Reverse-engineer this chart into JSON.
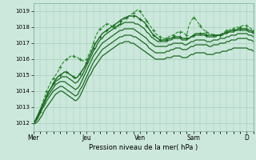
{
  "title": "",
  "xlabel": "Pression niveau de la mer( hPa )",
  "ylabel": "",
  "bg_color": "#cce8dc",
  "grid_color": "#a0c8b8",
  "line_color_solid": "#1a6b20",
  "line_color_dashed": "#2a8a30",
  "ylim": [
    1011.5,
    1019.5
  ],
  "yticks": [
    1012,
    1013,
    1014,
    1015,
    1016,
    1017,
    1018,
    1019
  ],
  "day_labels": [
    "Mer",
    "Jeu",
    "Ven",
    "Sam",
    "D"
  ],
  "day_positions": [
    0,
    24,
    48,
    72,
    96
  ],
  "total_hours": 100,
  "series": [
    [
      1012.0,
      1012.2,
      1012.5,
      1012.8,
      1013.2,
      1013.6,
      1014.0,
      1014.3,
      1014.6,
      1014.8,
      1015.0,
      1015.2,
      1015.5,
      1015.7,
      1015.9,
      1016.0,
      1016.1,
      1016.2,
      1016.2,
      1016.1,
      1016.1,
      1016.0,
      1015.9,
      1015.9,
      1016.0,
      1016.3,
      1016.6,
      1017.0,
      1017.4,
      1017.7,
      1017.9,
      1018.0,
      1018.1,
      1018.2,
      1018.2,
      1018.1,
      1018.0,
      1017.9,
      1018.0,
      1018.2,
      1018.4,
      1018.5,
      1018.6,
      1018.7,
      1018.8,
      1018.9,
      1019.0,
      1019.1,
      1019.0,
      1018.8,
      1018.6,
      1018.4,
      1018.2,
      1018.0,
      1017.8,
      1017.6,
      1017.5,
      1017.4,
      1017.3,
      1017.3,
      1017.3,
      1017.4,
      1017.5,
      1017.5,
      1017.6,
      1017.7,
      1017.7,
      1017.7,
      1017.6,
      1017.5,
      1018.1,
      1018.4,
      1018.6,
      1018.5,
      1018.3,
      1018.1,
      1017.9,
      1017.8,
      1017.7,
      1017.6,
      1017.6,
      1017.5,
      1017.5,
      1017.5,
      1017.5,
      1017.6,
      1017.7,
      1017.8,
      1017.8,
      1017.9,
      1017.9,
      1018.0,
      1018.0,
      1018.0,
      1018.1,
      1018.1,
      1018.1,
      1018.0,
      1017.9,
      1017.8
    ],
    [
      1012.0,
      1012.2,
      1012.4,
      1012.7,
      1013.0,
      1013.3,
      1013.7,
      1014.0,
      1014.2,
      1014.5,
      1014.7,
      1014.9,
      1015.0,
      1015.1,
      1015.2,
      1015.2,
      1015.1,
      1015.0,
      1014.9,
      1014.8,
      1014.9,
      1015.1,
      1015.3,
      1015.5,
      1015.8,
      1016.1,
      1016.4,
      1016.7,
      1017.0,
      1017.2,
      1017.4,
      1017.6,
      1017.7,
      1017.8,
      1017.9,
      1018.0,
      1018.1,
      1018.2,
      1018.3,
      1018.4,
      1018.5,
      1018.6,
      1018.6,
      1018.7,
      1018.7,
      1018.7,
      1018.7,
      1018.6,
      1018.5,
      1018.4,
      1018.3,
      1018.1,
      1017.9,
      1017.7,
      1017.5,
      1017.4,
      1017.3,
      1017.2,
      1017.2,
      1017.2,
      1017.2,
      1017.3,
      1017.3,
      1017.4,
      1017.4,
      1017.4,
      1017.4,
      1017.3,
      1017.3,
      1017.3,
      1017.3,
      1017.4,
      1017.5,
      1017.6,
      1017.6,
      1017.6,
      1017.6,
      1017.6,
      1017.5,
      1017.5,
      1017.5,
      1017.5,
      1017.5,
      1017.5,
      1017.5,
      1017.6,
      1017.6,
      1017.7,
      1017.7,
      1017.8,
      1017.8,
      1017.8,
      1017.9,
      1017.9,
      1017.9,
      1017.9,
      1017.9,
      1017.8,
      1017.8,
      1017.7
    ],
    [
      1012.0,
      1012.2,
      1012.5,
      1012.8,
      1013.1,
      1013.4,
      1013.7,
      1014.0,
      1014.2,
      1014.4,
      1014.6,
      1014.7,
      1014.8,
      1014.9,
      1014.9,
      1014.9,
      1014.8,
      1014.7,
      1014.6,
      1014.5,
      1014.6,
      1014.8,
      1015.0,
      1015.3,
      1015.6,
      1015.9,
      1016.2,
      1016.5,
      1016.7,
      1017.0,
      1017.2,
      1017.3,
      1017.5,
      1017.6,
      1017.7,
      1017.8,
      1017.9,
      1018.0,
      1018.1,
      1018.2,
      1018.2,
      1018.3,
      1018.3,
      1018.3,
      1018.3,
      1018.3,
      1018.2,
      1018.2,
      1018.1,
      1018.0,
      1017.9,
      1017.7,
      1017.6,
      1017.4,
      1017.3,
      1017.2,
      1017.1,
      1017.1,
      1017.1,
      1017.1,
      1017.1,
      1017.2,
      1017.2,
      1017.3,
      1017.3,
      1017.3,
      1017.3,
      1017.2,
      1017.2,
      1017.2,
      1017.3,
      1017.4,
      1017.4,
      1017.5,
      1017.5,
      1017.5,
      1017.5,
      1017.5,
      1017.4,
      1017.4,
      1017.4,
      1017.4,
      1017.4,
      1017.5,
      1017.5,
      1017.5,
      1017.6,
      1017.6,
      1017.7,
      1017.7,
      1017.7,
      1017.8,
      1017.8,
      1017.8,
      1017.8,
      1017.8,
      1017.8,
      1017.7,
      1017.7,
      1017.6
    ],
    [
      1012.0,
      1012.2,
      1012.4,
      1012.7,
      1013.0,
      1013.3,
      1013.6,
      1013.8,
      1014.0,
      1014.2,
      1014.4,
      1014.5,
      1014.6,
      1014.6,
      1014.6,
      1014.5,
      1014.4,
      1014.3,
      1014.2,
      1014.1,
      1014.2,
      1014.4,
      1014.7,
      1015.0,
      1015.3,
      1015.6,
      1015.9,
      1016.2,
      1016.4,
      1016.6,
      1016.8,
      1017.0,
      1017.1,
      1017.2,
      1017.3,
      1017.4,
      1017.5,
      1017.6,
      1017.7,
      1017.8,
      1017.8,
      1017.9,
      1017.9,
      1017.9,
      1017.9,
      1017.9,
      1017.8,
      1017.7,
      1017.6,
      1017.5,
      1017.4,
      1017.3,
      1017.1,
      1017.0,
      1016.9,
      1016.8,
      1016.8,
      1016.8,
      1016.8,
      1016.8,
      1016.8,
      1016.9,
      1016.9,
      1017.0,
      1017.0,
      1017.0,
      1017.0,
      1017.0,
      1016.9,
      1016.9,
      1017.0,
      1017.1,
      1017.1,
      1017.2,
      1017.2,
      1017.2,
      1017.2,
      1017.2,
      1017.1,
      1017.1,
      1017.1,
      1017.2,
      1017.2,
      1017.2,
      1017.3,
      1017.3,
      1017.3,
      1017.4,
      1017.4,
      1017.5,
      1017.5,
      1017.5,
      1017.6,
      1017.6,
      1017.6,
      1017.6,
      1017.6,
      1017.5,
      1017.5,
      1017.4
    ],
    [
      1012.0,
      1012.1,
      1012.3,
      1012.6,
      1012.9,
      1013.1,
      1013.4,
      1013.6,
      1013.8,
      1014.0,
      1014.1,
      1014.2,
      1014.3,
      1014.3,
      1014.2,
      1014.1,
      1014.0,
      1013.9,
      1013.8,
      1013.7,
      1013.8,
      1014.1,
      1014.3,
      1014.6,
      1014.9,
      1015.2,
      1015.5,
      1015.8,
      1016.0,
      1016.2,
      1016.4,
      1016.6,
      1016.7,
      1016.8,
      1016.9,
      1017.0,
      1017.1,
      1017.2,
      1017.3,
      1017.4,
      1017.4,
      1017.5,
      1017.5,
      1017.5,
      1017.5,
      1017.4,
      1017.4,
      1017.3,
      1017.2,
      1017.1,
      1017.0,
      1016.9,
      1016.7,
      1016.6,
      1016.5,
      1016.4,
      1016.4,
      1016.4,
      1016.4,
      1016.4,
      1016.5,
      1016.5,
      1016.6,
      1016.6,
      1016.7,
      1016.7,
      1016.7,
      1016.6,
      1016.6,
      1016.6,
      1016.7,
      1016.8,
      1016.8,
      1016.9,
      1016.9,
      1016.9,
      1016.9,
      1016.9,
      1016.9,
      1016.8,
      1016.8,
      1016.9,
      1016.9,
      1016.9,
      1017.0,
      1017.0,
      1017.0,
      1017.1,
      1017.1,
      1017.2,
      1017.2,
      1017.2,
      1017.3,
      1017.3,
      1017.3,
      1017.3,
      1017.3,
      1017.2,
      1017.2,
      1017.1
    ],
    [
      1012.0,
      1012.0,
      1012.1,
      1012.3,
      1012.5,
      1012.8,
      1013.0,
      1013.2,
      1013.4,
      1013.6,
      1013.8,
      1013.9,
      1014.0,
      1014.0,
      1013.9,
      1013.8,
      1013.7,
      1013.6,
      1013.5,
      1013.4,
      1013.5,
      1013.7,
      1014.0,
      1014.3,
      1014.6,
      1014.9,
      1015.1,
      1015.4,
      1015.6,
      1015.8,
      1016.0,
      1016.2,
      1016.3,
      1016.4,
      1016.5,
      1016.6,
      1016.7,
      1016.8,
      1016.9,
      1017.0,
      1017.0,
      1017.1,
      1017.1,
      1017.1,
      1017.0,
      1017.0,
      1016.9,
      1016.8,
      1016.7,
      1016.6,
      1016.5,
      1016.4,
      1016.3,
      1016.2,
      1016.1,
      1016.0,
      1016.0,
      1016.0,
      1016.0,
      1016.0,
      1016.1,
      1016.1,
      1016.1,
      1016.2,
      1016.2,
      1016.2,
      1016.2,
      1016.1,
      1016.1,
      1016.1,
      1016.2,
      1016.3,
      1016.3,
      1016.4,
      1016.4,
      1016.4,
      1016.4,
      1016.4,
      1016.3,
      1016.3,
      1016.3,
      1016.3,
      1016.4,
      1016.4,
      1016.4,
      1016.5,
      1016.5,
      1016.5,
      1016.6,
      1016.6,
      1016.7,
      1016.7,
      1016.7,
      1016.7,
      1016.7,
      1016.7,
      1016.7,
      1016.6,
      1016.6,
      1016.5
    ]
  ],
  "dashed_indices": [
    0
  ],
  "marker_series": [
    0,
    5
  ]
}
